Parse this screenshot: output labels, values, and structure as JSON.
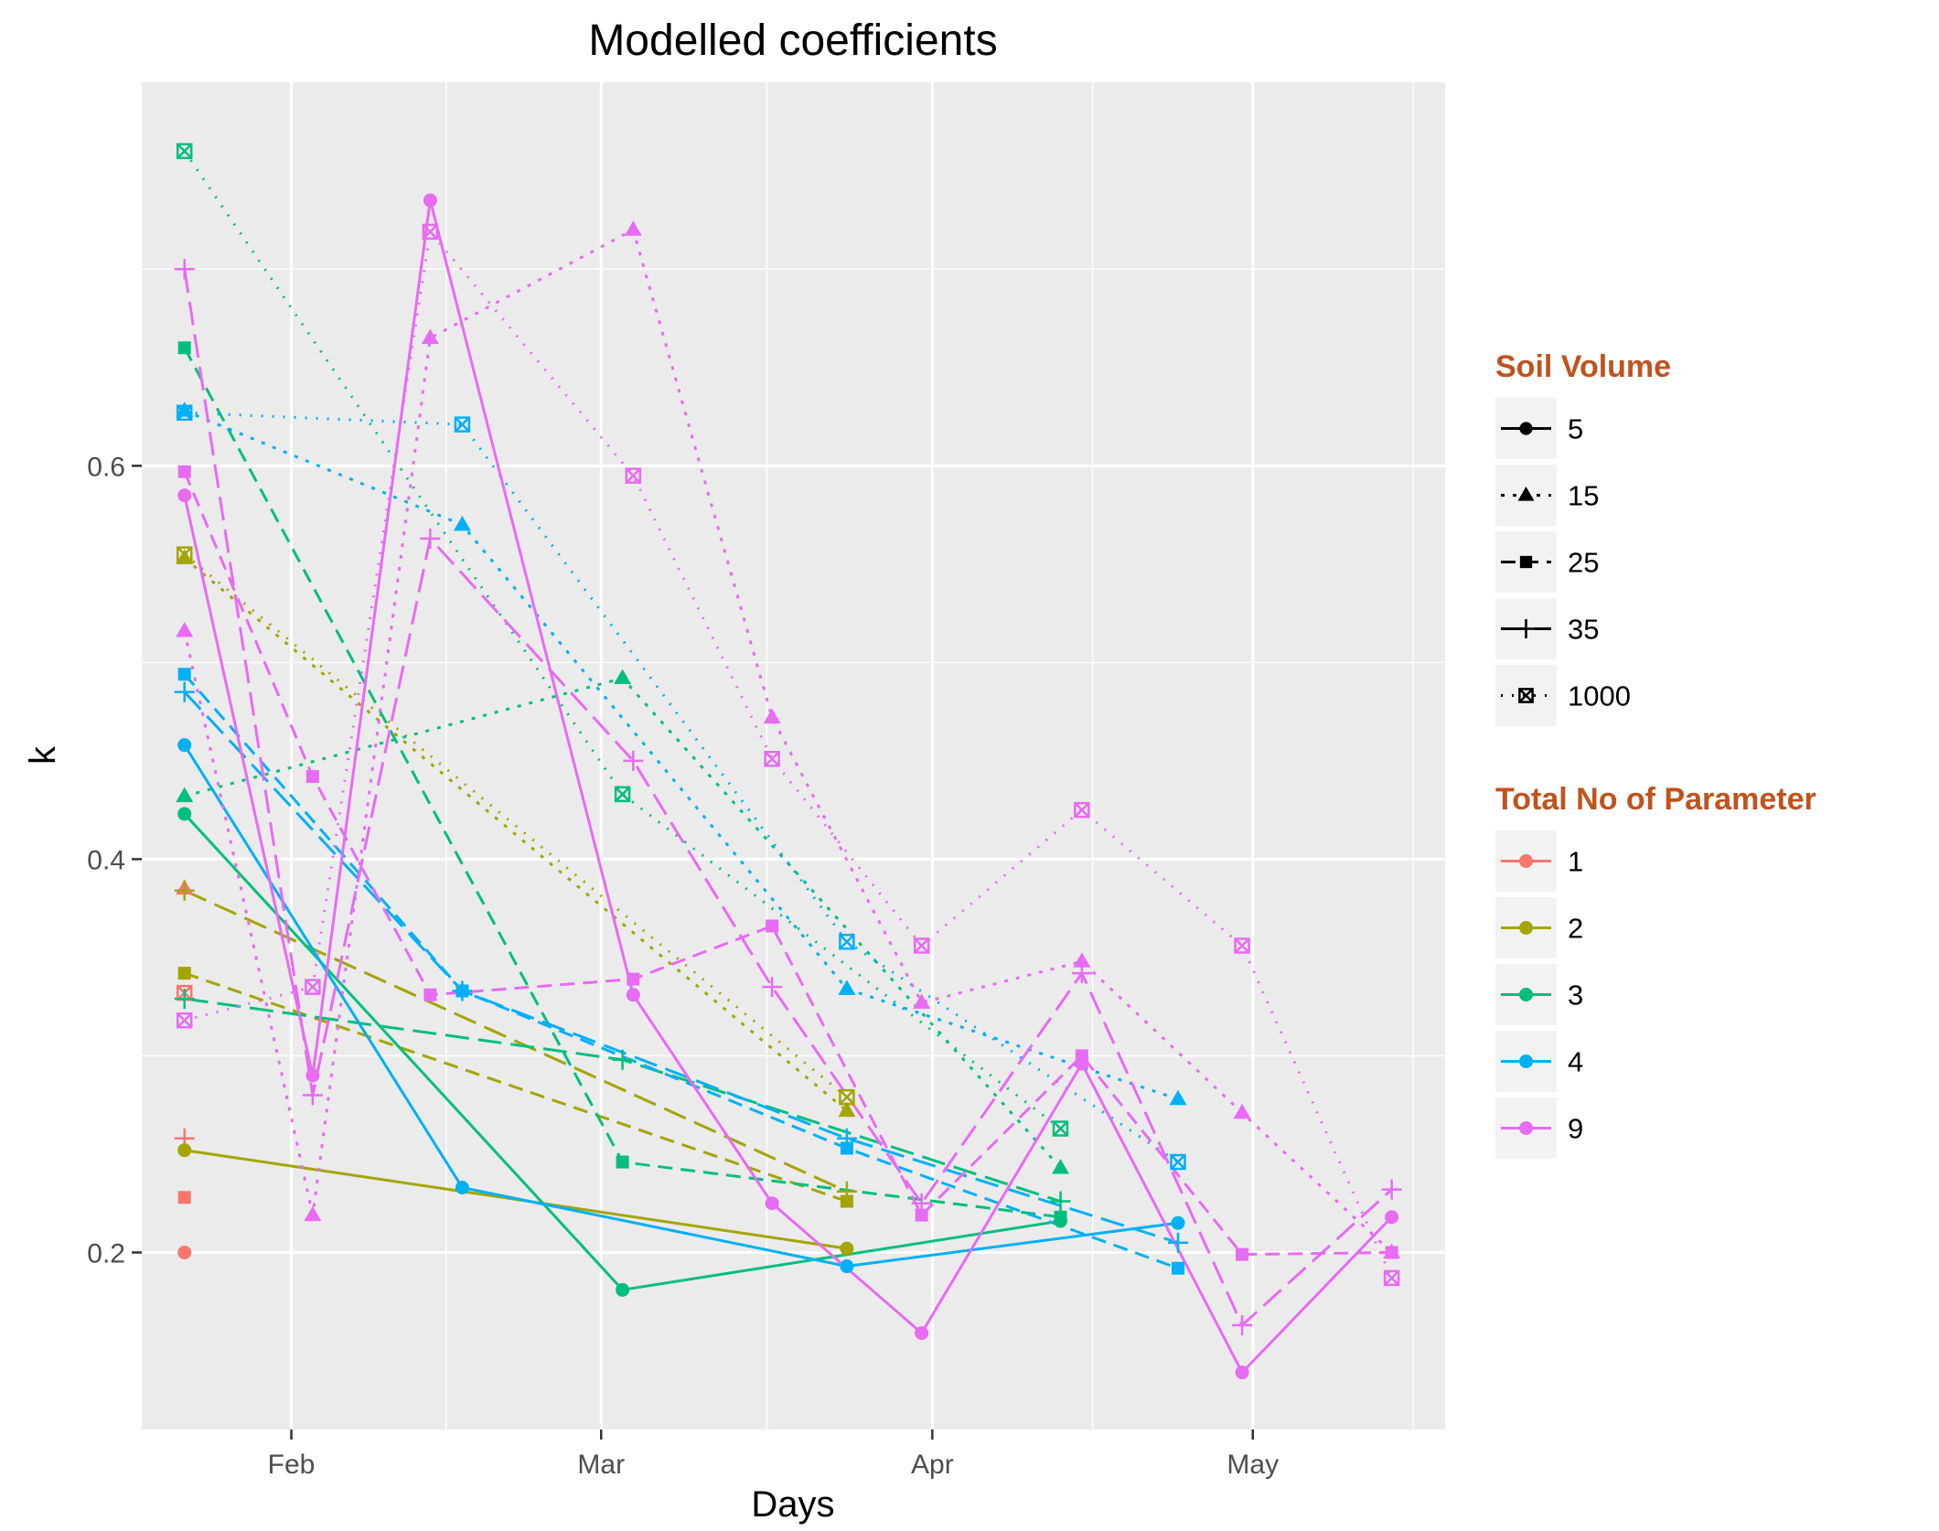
{
  "chart_data": {
    "type": "line",
    "title": "Modelled coefficients",
    "xlabel": "Days",
    "ylabel": "k",
    "x_ticks": [
      {
        "label": "Feb",
        "date": "2016-02-01"
      },
      {
        "label": "Mar",
        "date": "2016-03-01"
      },
      {
        "label": "Apr",
        "date": "2016-04-01"
      },
      {
        "label": "May",
        "date": "2016-05-01"
      }
    ],
    "xlim": [
      "2016-01-18",
      "2016-05-19"
    ],
    "y_ticks": [
      "0.2",
      "0.4",
      "0.6"
    ],
    "ylim": [
      0.11,
      0.795
    ],
    "grid": true,
    "colors": {
      "1": "#F8766D",
      "2": "#A3A500",
      "3": "#00BF7D",
      "4": "#00B0F6",
      "9": "#E76BF3"
    },
    "legends": [
      {
        "title": "Soil Volume",
        "title_color": "#C0531C",
        "items": [
          {
            "label": "5",
            "shape": "circle",
            "line": "solid"
          },
          {
            "label": "15",
            "shape": "triangle",
            "line": "dotted"
          },
          {
            "label": "25",
            "shape": "square",
            "line": "dashed"
          },
          {
            "label": "35",
            "shape": "plus",
            "line": "longdash"
          },
          {
            "label": "1000",
            "shape": "boxcross",
            "line": "dotted-fine"
          }
        ]
      },
      {
        "title": "Total No of Parameter",
        "title_color": "#C0531C",
        "items": [
          {
            "label": "1",
            "color": "#F8766D"
          },
          {
            "label": "2",
            "color": "#A3A500"
          },
          {
            "label": "3",
            "color": "#00BF7D"
          },
          {
            "label": "4",
            "color": "#00B0F6"
          },
          {
            "label": "9",
            "color": "#E76BF3"
          }
        ]
      }
    ],
    "series": [
      {
        "params": "1",
        "soil": "5",
        "points": [
          [
            "2016-01-22",
            0.2
          ]
        ]
      },
      {
        "params": "1",
        "soil": "15",
        "points": [
          [
            "2016-01-22",
            0.385
          ]
        ]
      },
      {
        "params": "1",
        "soil": "25",
        "points": [
          [
            "2016-01-22",
            0.228
          ]
        ]
      },
      {
        "params": "1",
        "soil": "35",
        "points": [
          [
            "2016-01-22",
            0.258
          ]
        ]
      },
      {
        "params": "1",
        "soil": "1000",
        "points": [
          [
            "2016-01-22",
            0.332
          ]
        ]
      },
      {
        "params": "2",
        "soil": "5",
        "points": [
          [
            "2016-01-22",
            0.252
          ],
          [
            "2016-03-24",
            0.202
          ]
        ]
      },
      {
        "params": "2",
        "soil": "15",
        "points": [
          [
            "2016-01-22",
            0.553
          ],
          [
            "2016-03-24",
            0.272
          ]
        ]
      },
      {
        "params": "2",
        "soil": "25",
        "points": [
          [
            "2016-01-22",
            0.342
          ],
          [
            "2016-03-24",
            0.226
          ]
        ]
      },
      {
        "params": "2",
        "soil": "35",
        "points": [
          [
            "2016-01-22",
            0.384
          ],
          [
            "2016-03-24",
            0.231
          ]
        ]
      },
      {
        "params": "2",
        "soil": "1000",
        "points": [
          [
            "2016-01-22",
            0.555
          ],
          [
            "2016-03-24",
            0.279
          ]
        ]
      },
      {
        "params": "3",
        "soil": "5",
        "points": [
          [
            "2016-01-22",
            0.423
          ],
          [
            "2016-03-03",
            0.181
          ],
          [
            "2016-04-13",
            0.216
          ]
        ]
      },
      {
        "params": "3",
        "soil": "15",
        "points": [
          [
            "2016-01-22",
            0.432
          ],
          [
            "2016-03-03",
            0.492
          ],
          [
            "2016-04-13",
            0.243
          ]
        ]
      },
      {
        "params": "3",
        "soil": "25",
        "points": [
          [
            "2016-01-22",
            0.66
          ],
          [
            "2016-03-03",
            0.246
          ],
          [
            "2016-04-13",
            0.218
          ]
        ]
      },
      {
        "params": "3",
        "soil": "35",
        "points": [
          [
            "2016-01-22",
            0.329
          ],
          [
            "2016-03-03",
            0.298
          ],
          [
            "2016-04-13",
            0.226
          ]
        ]
      },
      {
        "params": "3",
        "soil": "1000",
        "points": [
          [
            "2016-01-22",
            0.76
          ],
          [
            "2016-03-03",
            0.433
          ],
          [
            "2016-04-13",
            0.263
          ]
        ]
      },
      {
        "params": "4",
        "soil": "5",
        "points": [
          [
            "2016-01-22",
            0.458
          ],
          [
            "2016-02-17",
            0.233
          ],
          [
            "2016-03-24",
            0.193
          ],
          [
            "2016-04-24",
            0.215
          ]
        ]
      },
      {
        "params": "4",
        "soil": "15",
        "points": [
          [
            "2016-01-22",
            0.628
          ],
          [
            "2016-02-17",
            0.57
          ],
          [
            "2016-03-24",
            0.334
          ],
          [
            "2016-04-24",
            0.278
          ]
        ]
      },
      {
        "params": "4",
        "soil": "25",
        "points": [
          [
            "2016-01-22",
            0.494
          ],
          [
            "2016-02-17",
            0.333
          ],
          [
            "2016-03-24",
            0.253
          ],
          [
            "2016-04-24",
            0.192
          ]
        ]
      },
      {
        "params": "4",
        "soil": "35",
        "points": [
          [
            "2016-01-22",
            0.485
          ],
          [
            "2016-02-17",
            0.333
          ],
          [
            "2016-03-24",
            0.258
          ],
          [
            "2016-04-24",
            0.205
          ]
        ]
      },
      {
        "params": "4",
        "soil": "1000",
        "points": [
          [
            "2016-01-22",
            0.627
          ],
          [
            "2016-02-17",
            0.621
          ],
          [
            "2016-03-24",
            0.358
          ],
          [
            "2016-04-24",
            0.246
          ]
        ]
      },
      {
        "params": "9",
        "soil": "5",
        "points": [
          [
            "2016-01-22",
            0.585
          ],
          [
            "2016-02-03",
            0.29
          ],
          [
            "2016-02-14",
            0.735
          ],
          [
            "2016-03-04",
            0.331
          ],
          [
            "2016-03-17",
            0.225
          ],
          [
            "2016-03-31",
            0.159
          ],
          [
            "2016-04-15",
            0.296
          ],
          [
            "2016-04-30",
            0.139
          ],
          [
            "2016-05-14",
            0.218
          ]
        ]
      },
      {
        "params": "9",
        "soil": "15",
        "points": [
          [
            "2016-01-22",
            0.516
          ],
          [
            "2016-02-03",
            0.219
          ],
          [
            "2016-02-14",
            0.665
          ],
          [
            "2016-03-04",
            0.72
          ],
          [
            "2016-03-17",
            0.472
          ],
          [
            "2016-03-31",
            0.327
          ],
          [
            "2016-04-15",
            0.348
          ],
          [
            "2016-04-30",
            0.271
          ],
          [
            "2016-05-14",
            0.2
          ]
        ]
      },
      {
        "params": "9",
        "soil": "25",
        "points": [
          [
            "2016-01-22",
            0.597
          ],
          [
            "2016-02-03",
            0.442
          ],
          [
            "2016-02-14",
            0.331
          ],
          [
            "2016-03-04",
            0.339
          ],
          [
            "2016-03-17",
            0.366
          ],
          [
            "2016-03-31",
            0.219
          ],
          [
            "2016-04-15",
            0.3
          ],
          [
            "2016-04-30",
            0.199
          ],
          [
            "2016-05-14",
            0.2
          ]
        ]
      },
      {
        "params": "9",
        "soil": "35",
        "points": [
          [
            "2016-01-22",
            0.7
          ],
          [
            "2016-02-03",
            0.28
          ],
          [
            "2016-02-14",
            0.563
          ],
          [
            "2016-03-04",
            0.45
          ],
          [
            "2016-03-17",
            0.335
          ],
          [
            "2016-03-31",
            0.225
          ],
          [
            "2016-04-15",
            0.342
          ],
          [
            "2016-04-30",
            0.163
          ],
          [
            "2016-05-14",
            0.232
          ]
        ]
      },
      {
        "params": "9",
        "soil": "1000",
        "points": [
          [
            "2016-01-22",
            0.318
          ],
          [
            "2016-02-03",
            0.335
          ],
          [
            "2016-02-14",
            0.719
          ],
          [
            "2016-03-04",
            0.595
          ],
          [
            "2016-03-17",
            0.451
          ],
          [
            "2016-03-31",
            0.356
          ],
          [
            "2016-04-15",
            0.425
          ],
          [
            "2016-04-30",
            0.356
          ],
          [
            "2016-05-14",
            0.187
          ]
        ]
      }
    ]
  }
}
